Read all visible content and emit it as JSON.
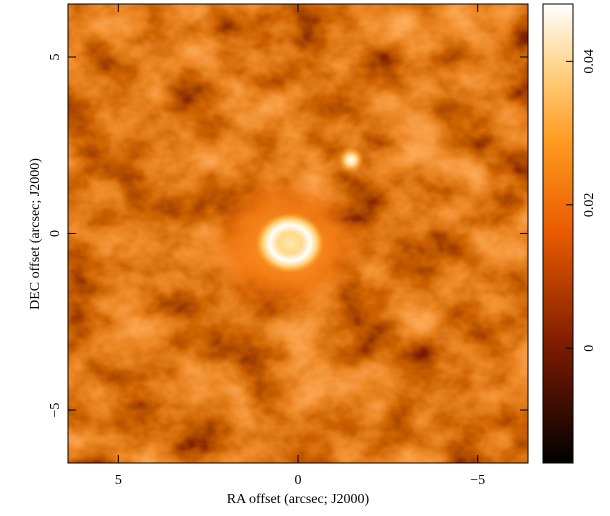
{
  "chart_data": {
    "type": "image",
    "xlabel": "RA offset (arcsec; J2000)",
    "ylabel": "DEC offset (arcsec; J2000)",
    "xlim": [
      6.4,
      -6.4
    ],
    "ylim": [
      -6.5,
      6.5
    ],
    "xticks": [
      5,
      0,
      {
        "value": -5,
        "label": "−5"
      }
    ],
    "yticks": [
      {
        "value": -5,
        "label": "−5"
      },
      0,
      5
    ],
    "colorbar": {
      "lim": [
        -0.016,
        0.048
      ],
      "ticks": [
        0,
        0.02,
        0.04
      ]
    }
  }
}
